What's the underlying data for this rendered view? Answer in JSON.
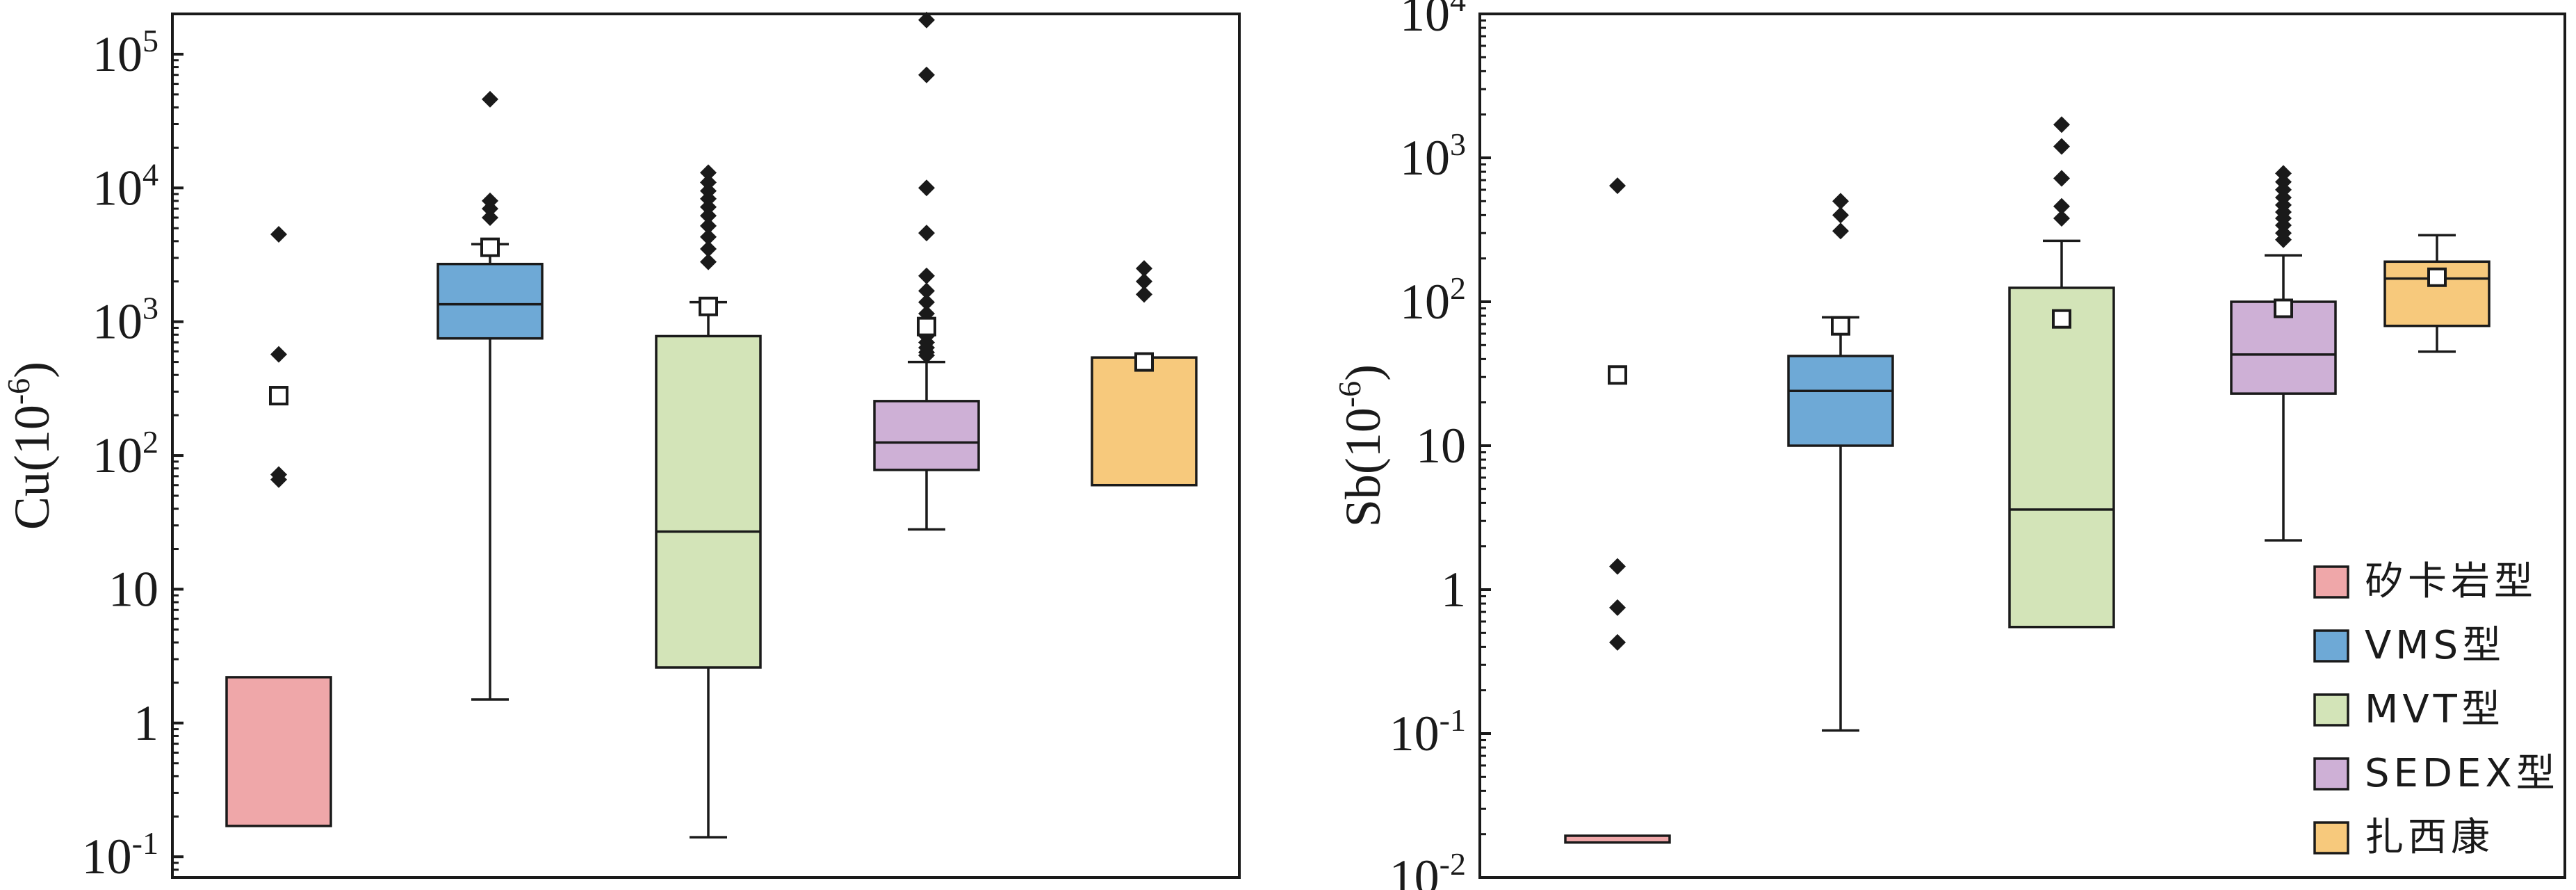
{
  "chart_data": [
    {
      "type": "box",
      "ylabel_main": "Cu(10",
      "ylabel_exp": "-6",
      "ylabel_close": ")",
      "yscale": "log",
      "ylim": [
        0.07,
        200000
      ],
      "yticks": [
        {
          "value": 100000,
          "base": "10",
          "exp": "5"
        },
        {
          "value": 10000,
          "base": "10",
          "exp": "4"
        },
        {
          "value": 1000,
          "base": "10",
          "exp": "3"
        },
        {
          "value": 100,
          "base": "10",
          "exp": "2"
        },
        {
          "value": 10,
          "base": "10",
          "exp": ""
        },
        {
          "value": 1,
          "base": "1",
          "exp": ""
        },
        {
          "value": 0.1,
          "base": "10",
          "exp": "-1"
        }
      ],
      "groups": [
        {
          "category": "矽卡岩型",
          "q1": 0.17,
          "median": null,
          "q3": 2.2,
          "whisker_low": null,
          "whisker_high": null,
          "mean": 280,
          "outliers": [
            4500,
            570,
            72,
            66
          ]
        },
        {
          "category": "VMS型",
          "q1": 750,
          "median": 1350,
          "q3": 2700,
          "whisker_low": 1.5,
          "whisker_high": 3800,
          "mean": 3600,
          "outliers": [
            46000,
            8000,
            7000,
            6000
          ]
        },
        {
          "category": "MVT型",
          "q1": 2.6,
          "median": 27,
          "q3": 780,
          "whisker_low": 0.14,
          "whisker_high": 1400,
          "mean": 1300,
          "outliers": [
            13000,
            11000,
            9500,
            8300,
            7200,
            6200,
            5200,
            4300,
            3500,
            2800
          ]
        },
        {
          "category": "SEDEX型",
          "q1": 78,
          "median": 125,
          "q3": 255,
          "whisker_low": 28,
          "whisker_high": 500,
          "mean": 920,
          "outliers": [
            180000,
            70000,
            10000,
            4600,
            2200,
            1700,
            1400,
            1150,
            1000,
            880,
            780,
            700,
            640,
            590,
            560
          ]
        },
        {
          "category": "扎西康",
          "q1": 60,
          "median": null,
          "q3": 540,
          "whisker_low": null,
          "whisker_high": null,
          "mean": 500,
          "outliers": [
            2500,
            2000,
            1600
          ]
        }
      ]
    },
    {
      "type": "box",
      "ylabel_main": "Sb(10",
      "ylabel_exp": "-6",
      "ylabel_close": ")",
      "yscale": "log",
      "ylim": [
        0.01,
        10000
      ],
      "yticks": [
        {
          "value": 10000,
          "base": "10",
          "exp": "4"
        },
        {
          "value": 1000,
          "base": "10",
          "exp": "3"
        },
        {
          "value": 100,
          "base": "10",
          "exp": "2"
        },
        {
          "value": 10,
          "base": "10",
          "exp": ""
        },
        {
          "value": 1,
          "base": "1",
          "exp": ""
        },
        {
          "value": 0.1,
          "base": "10",
          "exp": "-1"
        },
        {
          "value": 0.01,
          "base": "10",
          "exp": "-2"
        }
      ],
      "groups": [
        {
          "category": "矽卡岩型",
          "q1": 0.0175,
          "median": null,
          "q3": 0.0195,
          "whisker_low": null,
          "whisker_high": null,
          "mean": 31,
          "outliers": [
            640,
            1.45,
            0.75,
            0.43
          ]
        },
        {
          "category": "VMS型",
          "q1": 10,
          "median": 24,
          "q3": 42,
          "whisker_low": 0.105,
          "whisker_high": 78,
          "mean": 68,
          "outliers": [
            500,
            400,
            310
          ]
        },
        {
          "category": "MVT型",
          "q1": 0.55,
          "median": 3.6,
          "q3": 125,
          "whisker_low": null,
          "whisker_high": 265,
          "mean": 76,
          "outliers": [
            1700,
            1200,
            720,
            460,
            380
          ]
        },
        {
          "category": "SEDEX型",
          "q1": 23,
          "median": 43,
          "q3": 100,
          "whisker_low": 2.2,
          "whisker_high": 210,
          "mean": 90,
          "outliers": [
            780,
            680,
            600,
            530,
            470,
            420,
            380,
            340,
            300,
            270
          ]
        },
        {
          "category": "扎西康",
          "q1": 68,
          "median": 145,
          "q3": 190,
          "whisker_low": 45,
          "whisker_high": 290,
          "mean": 148,
          "outliers": []
        }
      ]
    }
  ],
  "legend": {
    "position": "bottom-right",
    "items": [
      {
        "label": "矽卡岩型",
        "color": "#EFA7A9"
      },
      {
        "label": "VMS型",
        "color": "#6EA9D6"
      },
      {
        "label": "MVT型",
        "color": "#D3E4B8"
      },
      {
        "label": "SEDEX型",
        "color": "#CEB0D6"
      },
      {
        "label": "扎西康",
        "color": "#F7C97C"
      }
    ]
  }
}
